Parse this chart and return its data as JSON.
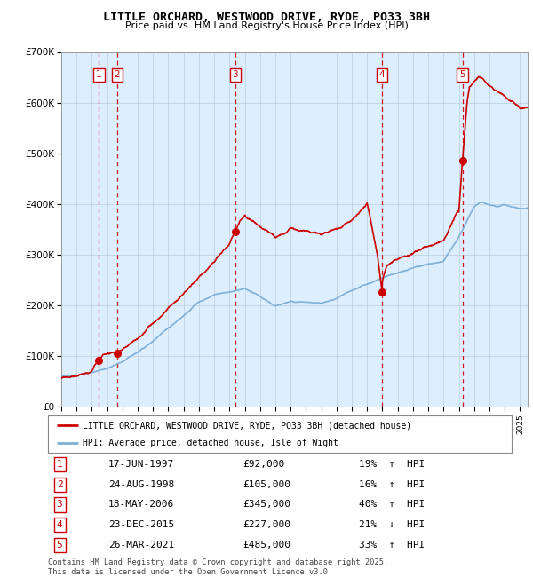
{
  "title": "LITTLE ORCHARD, WESTWOOD DRIVE, RYDE, PO33 3BH",
  "subtitle": "Price paid vs. HM Land Registry's House Price Index (HPI)",
  "legend_line1": "LITTLE ORCHARD, WESTWOOD DRIVE, RYDE, PO33 3BH (detached house)",
  "legend_line2": "HPI: Average price, detached house, Isle of Wight",
  "footer": "Contains HM Land Registry data © Crown copyright and database right 2025.\nThis data is licensed under the Open Government Licence v3.0.",
  "transactions": [
    {
      "num": 1,
      "date": "17-JUN-1997",
      "year": 1997.46,
      "price": 92000,
      "pct": "19%",
      "dir": "↑"
    },
    {
      "num": 2,
      "date": "24-AUG-1998",
      "year": 1998.65,
      "price": 105000,
      "pct": "16%",
      "dir": "↑"
    },
    {
      "num": 3,
      "date": "18-MAY-2006",
      "year": 2006.38,
      "price": 345000,
      "pct": "40%",
      "dir": "↑"
    },
    {
      "num": 4,
      "date": "23-DEC-2015",
      "year": 2015.98,
      "price": 227000,
      "pct": "21%",
      "dir": "↓"
    },
    {
      "num": 5,
      "date": "26-MAR-2021",
      "year": 2021.23,
      "price": 485000,
      "pct": "33%",
      "dir": "↑"
    }
  ],
  "red_color": "#cc0000",
  "blue_color": "#7fb0d8",
  "bg_color": "#ddeeff",
  "grid_color": "#bbccdd",
  "ylim": [
    0,
    700000
  ],
  "yticks": [
    0,
    100000,
    200000,
    300000,
    400000,
    500000,
    600000,
    700000
  ],
  "ylabel_fmt": [
    "£0",
    "£100K",
    "£200K",
    "£300K",
    "£400K",
    "£500K",
    "£600K",
    "£700K"
  ],
  "xmin": 1995.0,
  "xmax": 2025.5
}
